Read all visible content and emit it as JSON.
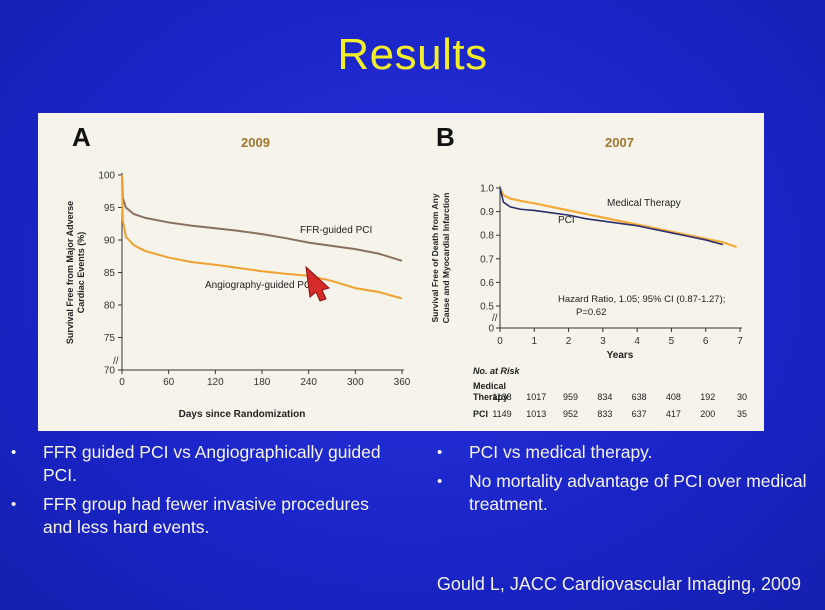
{
  "slide": {
    "title": "Results",
    "citation": "Gould L, JACC Cardiovascular Imaging, 2009",
    "bullets_left": [
      "FFR guided PCI vs Angiographically guided PCI.",
      "FFR group had fewer invasive procedures and less hard events."
    ],
    "bullets_right": [
      "PCI vs medical therapy.",
      "No mortality advantage of PCI over medical treatment."
    ],
    "bullet_glyph": "•"
  },
  "colors": {
    "background": "#1a24c8",
    "title": "#f2ee2a",
    "ffr": "#8a7060",
    "angio": "#f0a030",
    "medical": "#f5aa3a",
    "pci": "#2a2f6e"
  },
  "chart_data": [
    {
      "panel": "A",
      "year": "2009",
      "type": "line",
      "xlabel": "Days since Randomization",
      "ylabel": "Survival Free from Major Adverse Cardiac Events (%)",
      "xlim": [
        0,
        360
      ],
      "ylim": [
        70,
        100
      ],
      "xticks": [
        0,
        60,
        120,
        180,
        240,
        300,
        360
      ],
      "yticks": [
        70,
        75,
        80,
        85,
        90,
        95,
        100
      ],
      "ytick_labels": [
        "70",
        "75",
        "80",
        "85",
        "90",
        "95",
        "100"
      ],
      "series": [
        {
          "name": "FFR-guided PCI",
          "x": [
            0,
            1,
            5,
            15,
            30,
            60,
            90,
            120,
            150,
            180,
            210,
            240,
            270,
            300,
            330,
            360
          ],
          "values": [
            100,
            96.5,
            95.0,
            94.0,
            93.4,
            92.7,
            92.2,
            91.8,
            91.4,
            90.9,
            90.3,
            89.6,
            89.1,
            88.6,
            87.9,
            86.8
          ]
        },
        {
          "name": "Angiography-guided PCI",
          "x": [
            0,
            1,
            5,
            15,
            30,
            60,
            90,
            120,
            150,
            180,
            210,
            240,
            270,
            300,
            330,
            360
          ],
          "values": [
            100,
            93.0,
            90.5,
            89.2,
            88.3,
            87.3,
            86.6,
            86.2,
            85.7,
            85.2,
            84.8,
            84.5,
            83.7,
            82.6,
            82.0,
            81.0
          ]
        }
      ]
    },
    {
      "panel": "B",
      "year": "2007",
      "type": "line",
      "xlabel": "Years",
      "ylabel": "Survival Free of Death from Any Cause and Myocardial Infarction",
      "xlim": [
        0,
        7
      ],
      "ylim": [
        0,
        1.0
      ],
      "xticks": [
        0,
        1,
        2,
        3,
        4,
        5,
        6,
        7
      ],
      "yticks": [
        0,
        0.5,
        0.6,
        0.7,
        0.8,
        0.9,
        1.0
      ],
      "ytick_labels": [
        "0",
        "0.5",
        "0.6",
        "0.7",
        "0.8",
        "0.9",
        "1.0"
      ],
      "annotation_line1": "Hazard Ratio, 1.05; 95% CI (0.87-1.27);",
      "annotation_line2": "P=0.62",
      "series": [
        {
          "name": "Medical Therapy",
          "x": [
            0,
            0.1,
            0.3,
            0.6,
            1,
            1.5,
            2,
            2.5,
            3,
            3.5,
            4,
            4.5,
            5,
            5.5,
            6,
            6.5,
            6.9
          ],
          "values": [
            1.0,
            0.97,
            0.955,
            0.945,
            0.935,
            0.92,
            0.905,
            0.89,
            0.875,
            0.86,
            0.845,
            0.83,
            0.815,
            0.8,
            0.785,
            0.77,
            0.75
          ]
        },
        {
          "name": "PCI",
          "x": [
            0,
            0.1,
            0.3,
            0.6,
            1,
            1.5,
            2,
            2.5,
            3,
            3.5,
            4,
            4.5,
            5,
            5.5,
            6,
            6.5
          ],
          "values": [
            1.0,
            0.94,
            0.92,
            0.91,
            0.905,
            0.895,
            0.885,
            0.87,
            0.86,
            0.85,
            0.84,
            0.825,
            0.81,
            0.795,
            0.78,
            0.76
          ]
        }
      ],
      "risk_table": {
        "header": "No. at Risk",
        "rows": [
          {
            "label": "Medical Therapy",
            "label_line1": "Medical",
            "label_line2": "Therapy",
            "values": [
              "1138",
              "1017",
              "959",
              "834",
              "638",
              "408",
              "192",
              "30"
            ]
          },
          {
            "label": "PCI",
            "label_line1": "PCI",
            "label_line2": "",
            "values": [
              "1149",
              "1013",
              "952",
              "833",
              "637",
              "417",
              "200",
              "35"
            ]
          }
        ]
      }
    }
  ]
}
